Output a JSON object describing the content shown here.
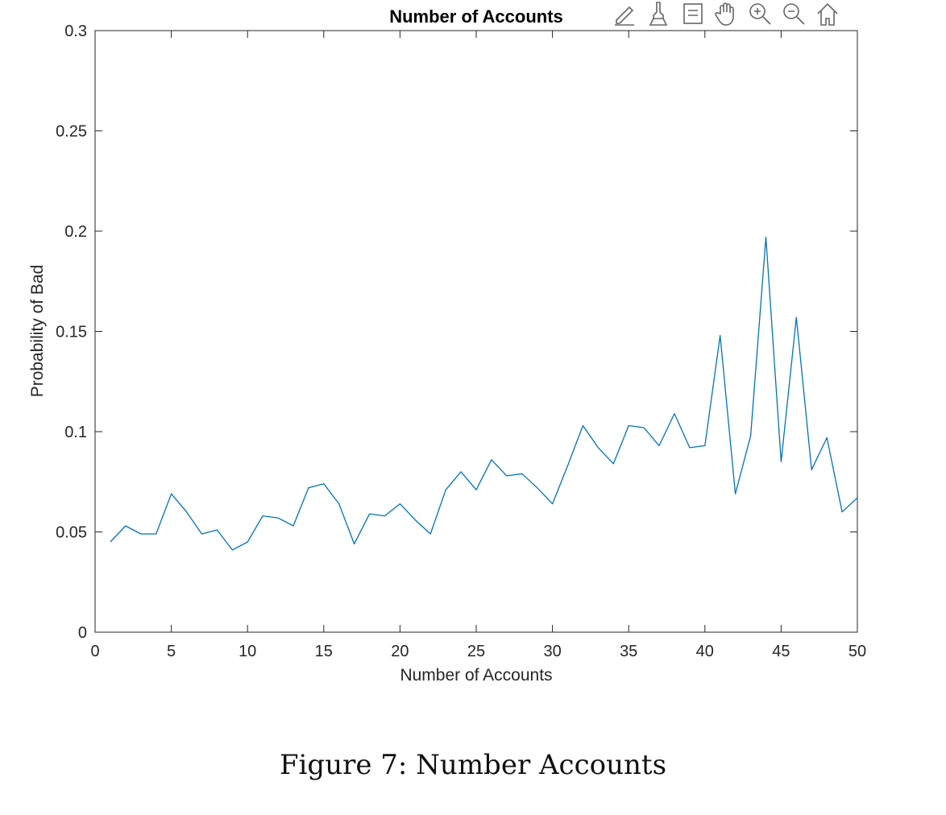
{
  "toolbar": {
    "icons": [
      "edit-data-tip-icon",
      "brush-icon",
      "legend-icon",
      "pan-hand-icon",
      "zoom-in-icon",
      "zoom-out-icon",
      "home-icon"
    ]
  },
  "caption": "Figure 7:  Number Accounts",
  "chart_data": {
    "type": "line",
    "title": "Number of Accounts",
    "xlabel": "Number of Accounts",
    "ylabel": "Probability of Bad",
    "xlim": [
      0,
      50
    ],
    "ylim": [
      0,
      0.3
    ],
    "xticks": [
      0,
      5,
      10,
      15,
      20,
      25,
      30,
      35,
      40,
      45,
      50
    ],
    "yticks": [
      0,
      0.05,
      0.1,
      0.15,
      0.2,
      0.25,
      0.3
    ],
    "xtick_labels": [
      "0",
      "5",
      "10",
      "15",
      "20",
      "25",
      "30",
      "35",
      "40",
      "45",
      "50"
    ],
    "ytick_labels": [
      "0",
      "0.05",
      "0.1",
      "0.15",
      "0.2",
      "0.25",
      "0.3"
    ],
    "grid": false,
    "line_color": "#0072BD",
    "x": [
      1,
      2,
      3,
      4,
      5,
      6,
      7,
      8,
      9,
      10,
      11,
      12,
      13,
      14,
      15,
      16,
      17,
      18,
      19,
      20,
      21,
      22,
      23,
      24,
      25,
      26,
      27,
      28,
      29,
      30,
      31,
      32,
      33,
      34,
      35,
      36,
      37,
      38,
      39,
      40,
      41,
      42,
      43,
      44,
      45,
      46,
      47,
      48,
      49,
      50
    ],
    "y": [
      0.045,
      0.053,
      0.049,
      0.049,
      0.069,
      0.06,
      0.049,
      0.051,
      0.041,
      0.045,
      0.058,
      0.057,
      0.053,
      0.072,
      0.074,
      0.064,
      0.044,
      0.059,
      0.058,
      0.064,
      0.056,
      0.049,
      0.071,
      0.08,
      0.071,
      0.086,
      0.078,
      0.079,
      0.072,
      0.064,
      0.083,
      0.103,
      0.092,
      0.084,
      0.103,
      0.102,
      0.093,
      0.109,
      0.092,
      0.093,
      0.148,
      0.069,
      0.098,
      0.197,
      0.085,
      0.157,
      0.081,
      0.097,
      0.06,
      0.067
    ]
  }
}
